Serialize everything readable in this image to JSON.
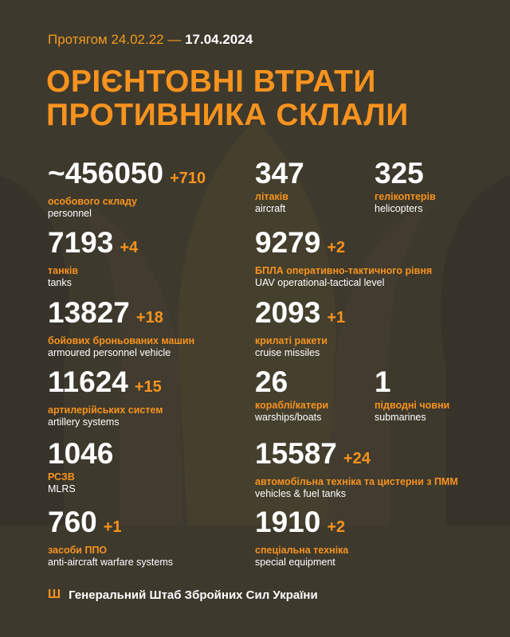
{
  "header": {
    "period_prefix": "Протягом 24.02.22 —",
    "date": "17.04.2024"
  },
  "title": {
    "line1": "ОРІЄНТОВНІ ВТРАТИ",
    "line2": "ПРОТИВНИКА СКЛАЛИ"
  },
  "colors": {
    "accent": "#f7931e",
    "background": "#3e392d"
  },
  "stats": [
    {
      "value": "~456050",
      "delta": "+710",
      "ua": "особового складу",
      "en": "personnel"
    },
    {
      "value": "347",
      "delta": "",
      "ua": "літаків",
      "en": "aircraft"
    },
    {
      "value": "325",
      "delta": "",
      "ua": "гелікоптерів",
      "en": "helicopters"
    },
    {
      "value": "7193",
      "delta": "+4",
      "ua": "танків",
      "en": "tanks"
    },
    {
      "value": "9279",
      "delta": "+2",
      "ua": "БПЛА оперативно-тактичного рівня",
      "en": "UAV operational-tactical level"
    },
    {
      "value": "13827",
      "delta": "+18",
      "ua": "бойових броньованих машин",
      "en": "armoured personnel vehicle"
    },
    {
      "value": "2093",
      "delta": "+1",
      "ua": "крилаті ракети",
      "en": "cruise missiles"
    },
    {
      "value": "11624",
      "delta": "+15",
      "ua": "артилерійських систем",
      "en": "artillery systems"
    },
    {
      "value": "26",
      "delta": "",
      "ua": "кораблі/катери",
      "en": "warships/boats"
    },
    {
      "value": "1",
      "delta": "",
      "ua": "підводні човни",
      "en": "submarines"
    },
    {
      "value": "1046",
      "delta": "",
      "ua": "РСЗВ",
      "en": "MLRS"
    },
    {
      "value": "15587",
      "delta": "+24",
      "ua": "автомобільна техніка та цистерни з ПММ",
      "en": "vehicles & fuel tanks"
    },
    {
      "value": "760",
      "delta": "+1",
      "ua": "засоби ППО",
      "en": "anti-aircraft warfare systems"
    },
    {
      "value": "1910",
      "delta": "+2",
      "ua": "спеціальна техніка",
      "en": "special equipment"
    }
  ],
  "footer": {
    "icon": "trident-icon",
    "text": "Генеральний Штаб Збройних Сил України"
  }
}
